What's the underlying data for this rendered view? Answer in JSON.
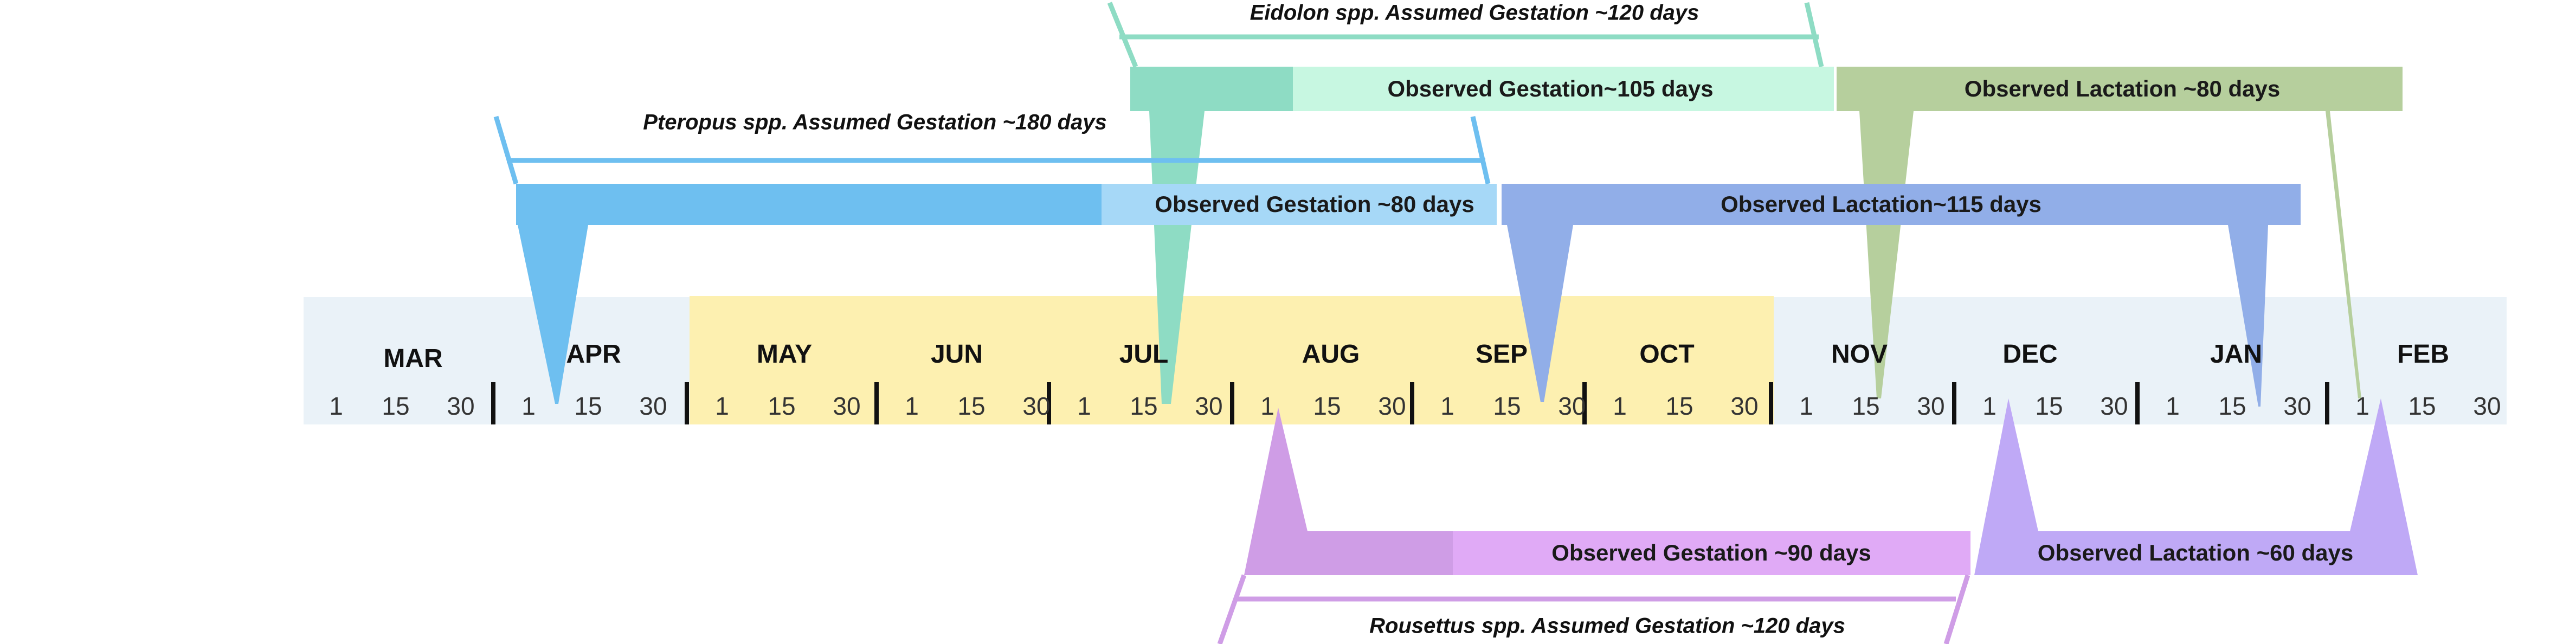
{
  "timeline": {
    "months": [
      "MAR",
      "APR",
      "MAY",
      "JUN",
      "JUL",
      "AUG",
      "SEP",
      "OCT",
      "NOV",
      "DEC",
      "JAN",
      "FEB"
    ],
    "day_ticks": [
      "1",
      "15",
      "30"
    ],
    "highlight_months": [
      "MAY",
      "JUN",
      "JUL",
      "AUG",
      "SEP",
      "OCT"
    ]
  },
  "colors": {
    "base_band": "#eaf2f8",
    "highlight_band": "#fdf0b0",
    "pteropus": "#6ebff0",
    "pteropus_light": "#a6d8f7",
    "eidolon": "#8edcc4",
    "eidolon_light": "#c7f7e1",
    "lactation_blue": "#91aee8",
    "lactation_green": "#b6cf9d",
    "rousettus": "#cf9de6",
    "rousettus_light": "#e0aaf6",
    "lactation_purple": "#bfa9f6",
    "separator": "#111111"
  },
  "labels": {
    "eidolon_assumed": "Eidolon spp. Assumed Gestation ~120 days",
    "eidolon_observed": "Observed Gestation~105 days",
    "green_lactation": "Observed Lactation ~80 days",
    "pteropus_assumed": "Pteropus spp. Assumed Gestation ~180 days",
    "pteropus_observed": "Observed Gestation ~80 days",
    "blue_lactation": "Observed  Lactation~115 days",
    "rousettus_observed": "Observed Gestation ~90 days",
    "purple_lactation": "Observed Lactation ~60 days",
    "rousettus_assumed": "Rousettus spp. Assumed Gestation ~120 days"
  }
}
